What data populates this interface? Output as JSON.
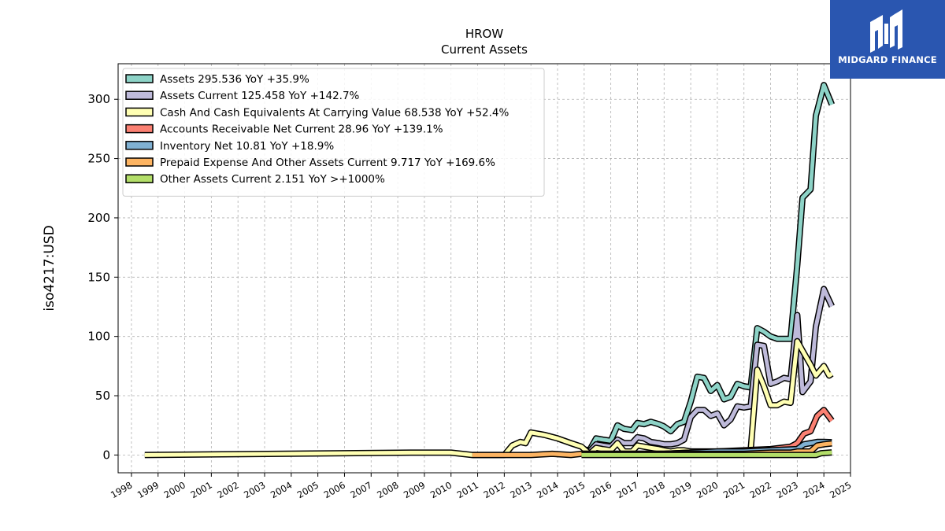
{
  "brand": {
    "name": "MIDGARD FINANCE",
    "color": "#2a56b0"
  },
  "chart_data": {
    "type": "line",
    "title": "HROW",
    "subtitle": "Current  Assets",
    "ylabel": "iso4217:USD",
    "xlabel": "",
    "xlim": [
      1997.5,
      2025.0
    ],
    "ylim": [
      -15,
      330
    ],
    "y_ticks": [
      0,
      50,
      100,
      150,
      200,
      250,
      300
    ],
    "x_ticks": [
      1998,
      1999,
      2000,
      2001,
      2002,
      2003,
      2004,
      2005,
      2006,
      2007,
      2008,
      2009,
      2010,
      2011,
      2012,
      2013,
      2014,
      2015,
      2016,
      2017,
      2018,
      2019,
      2020,
      2021,
      2022,
      2023,
      2024,
      2025
    ],
    "grid": true,
    "legend_position": "top-left",
    "series": [
      {
        "name": "Assets  295.536 YoY +35.9%",
        "color": "#8dd3c7",
        "points": [
          [
            2014.9,
            5
          ],
          [
            2015.2,
            4
          ],
          [
            2015.45,
            14
          ],
          [
            2015.7,
            13
          ],
          [
            2016.0,
            12
          ],
          [
            2016.25,
            25
          ],
          [
            2016.5,
            22
          ],
          [
            2016.8,
            21
          ],
          [
            2017.0,
            27
          ],
          [
            2017.25,
            26
          ],
          [
            2017.5,
            28
          ],
          [
            2017.8,
            26
          ],
          [
            2018.0,
            24
          ],
          [
            2018.25,
            20
          ],
          [
            2018.5,
            26
          ],
          [
            2018.75,
            28
          ],
          [
            2019.0,
            45
          ],
          [
            2019.25,
            66
          ],
          [
            2019.5,
            65
          ],
          [
            2019.75,
            54
          ],
          [
            2020.0,
            59
          ],
          [
            2020.25,
            47
          ],
          [
            2020.5,
            49
          ],
          [
            2020.75,
            60
          ],
          [
            2021.0,
            58
          ],
          [
            2021.25,
            57
          ],
          [
            2021.5,
            107
          ],
          [
            2021.75,
            104
          ],
          [
            2022.0,
            100
          ],
          [
            2022.25,
            98
          ],
          [
            2022.5,
            98
          ],
          [
            2022.75,
            98
          ],
          [
            2023.0,
            160
          ],
          [
            2023.2,
            217
          ],
          [
            2023.5,
            224
          ],
          [
            2023.7,
            286
          ],
          [
            2024.0,
            312
          ],
          [
            2024.3,
            295.536
          ]
        ]
      },
      {
        "name": "Assets Current  125.458 YoY +142.7%",
        "color": "#bebada",
        "points": [
          [
            2014.9,
            4
          ],
          [
            2015.2,
            3
          ],
          [
            2015.45,
            9
          ],
          [
            2015.7,
            8
          ],
          [
            2016.0,
            7
          ],
          [
            2016.25,
            13
          ],
          [
            2016.5,
            10
          ],
          [
            2016.8,
            10
          ],
          [
            2017.0,
            15
          ],
          [
            2017.25,
            14
          ],
          [
            2017.5,
            11
          ],
          [
            2017.8,
            10
          ],
          [
            2018.0,
            9
          ],
          [
            2018.25,
            9
          ],
          [
            2018.5,
            10
          ],
          [
            2018.75,
            13
          ],
          [
            2019.0,
            32
          ],
          [
            2019.25,
            38
          ],
          [
            2019.5,
            38
          ],
          [
            2019.75,
            33
          ],
          [
            2020.0,
            35
          ],
          [
            2020.25,
            25
          ],
          [
            2020.5,
            30
          ],
          [
            2020.75,
            41
          ],
          [
            2021.0,
            40
          ],
          [
            2021.25,
            41
          ],
          [
            2021.5,
            93
          ],
          [
            2021.75,
            92
          ],
          [
            2022.0,
            60
          ],
          [
            2022.25,
            62
          ],
          [
            2022.5,
            65
          ],
          [
            2022.75,
            64
          ],
          [
            2023.0,
            118
          ],
          [
            2023.2,
            53
          ],
          [
            2023.5,
            62
          ],
          [
            2023.7,
            108
          ],
          [
            2024.0,
            140
          ],
          [
            2024.3,
            125.458
          ]
        ]
      },
      {
        "name": "Cash And Cash Equivalents At Carrying Value  68.538 YoY +52.4%",
        "color": "#ffffb3",
        "points": [
          [
            1998.5,
            0
          ],
          [
            2008.5,
            2
          ],
          [
            2010.0,
            2
          ],
          [
            2010.8,
            0
          ],
          [
            2011.2,
            0
          ],
          [
            2012.0,
            0
          ],
          [
            2012.3,
            8
          ],
          [
            2012.6,
            11
          ],
          [
            2012.8,
            10
          ],
          [
            2013.0,
            19
          ],
          [
            2013.5,
            17
          ],
          [
            2014.0,
            14
          ],
          [
            2014.5,
            10
          ],
          [
            2014.9,
            7
          ],
          [
            2015.2,
            1
          ],
          [
            2015.45,
            6
          ],
          [
            2015.7,
            5
          ],
          [
            2016.0,
            4
          ],
          [
            2016.25,
            10
          ],
          [
            2016.5,
            3
          ],
          [
            2016.8,
            3
          ],
          [
            2017.0,
            8
          ],
          [
            2017.25,
            7
          ],
          [
            2017.5,
            6
          ],
          [
            2017.8,
            5
          ],
          [
            2018.0,
            4
          ],
          [
            2018.25,
            3
          ],
          [
            2018.5,
            4
          ],
          [
            2018.75,
            4
          ],
          [
            2019.0,
            3
          ],
          [
            2019.25,
            3
          ],
          [
            2019.5,
            3
          ],
          [
            2019.75,
            3
          ],
          [
            2020.0,
            3
          ],
          [
            2020.25,
            3
          ],
          [
            2020.5,
            3
          ],
          [
            2020.75,
            3
          ],
          [
            2021.0,
            3
          ],
          [
            2021.25,
            4
          ],
          [
            2021.5,
            72
          ],
          [
            2021.75,
            58
          ],
          [
            2022.0,
            42
          ],
          [
            2022.25,
            42
          ],
          [
            2022.5,
            45
          ],
          [
            2022.75,
            44
          ],
          [
            2023.0,
            96
          ],
          [
            2023.2,
            88
          ],
          [
            2023.5,
            76
          ],
          [
            2023.7,
            67
          ],
          [
            2024.0,
            75
          ],
          [
            2024.2,
            67
          ],
          [
            2024.3,
            68.538
          ]
        ]
      },
      {
        "name": "Accounts Receivable Net Current  28.96 YoY +139.1%",
        "color": "#fb8072",
        "points": [
          [
            2014.9,
            1
          ],
          [
            2016.0,
            1
          ],
          [
            2017.0,
            1
          ],
          [
            2018.0,
            1
          ],
          [
            2019.0,
            2
          ],
          [
            2020.0,
            3
          ],
          [
            2021.0,
            4
          ],
          [
            2022.0,
            5
          ],
          [
            2022.75,
            7
          ],
          [
            2023.0,
            10
          ],
          [
            2023.25,
            18
          ],
          [
            2023.5,
            20
          ],
          [
            2023.75,
            33
          ],
          [
            2024.0,
            38
          ],
          [
            2024.3,
            28.96
          ]
        ]
      },
      {
        "name": "Inventory Net  10.81 YoY +18.9%",
        "color": "#80b1d3",
        "points": [
          [
            2014.9,
            1
          ],
          [
            2016.0,
            1
          ],
          [
            2017.0,
            1
          ],
          [
            2018.0,
            1
          ],
          [
            2019.0,
            2
          ],
          [
            2020.0,
            3
          ],
          [
            2021.0,
            3
          ],
          [
            2022.0,
            4
          ],
          [
            2023.0,
            5
          ],
          [
            2023.25,
            9
          ],
          [
            2023.5,
            10
          ],
          [
            2023.75,
            11
          ],
          [
            2024.0,
            11
          ],
          [
            2024.3,
            10.81
          ]
        ]
      },
      {
        "name": "Prepaid Expense And Other Assets Current  9.717 YoY +169.6%",
        "color": "#fdb462",
        "points": [
          [
            2010.8,
            0
          ],
          [
            2012.0,
            0
          ],
          [
            2013.0,
            0
          ],
          [
            2013.8,
            1
          ],
          [
            2014.5,
            0
          ],
          [
            2014.9,
            1
          ],
          [
            2016.0,
            1
          ],
          [
            2017.0,
            1
          ],
          [
            2018.0,
            1
          ],
          [
            2019.0,
            1
          ],
          [
            2020.0,
            1
          ],
          [
            2021.0,
            1
          ],
          [
            2022.0,
            2
          ],
          [
            2022.75,
            2
          ],
          [
            2023.0,
            3
          ],
          [
            2023.5,
            3
          ],
          [
            2023.75,
            8
          ],
          [
            2024.0,
            9
          ],
          [
            2024.3,
            9.717
          ]
        ]
      },
      {
        "name": "Other Assets Current  2.151 YoY >+1000%",
        "color": "#b3de69",
        "points": [
          [
            2014.9,
            0
          ],
          [
            2016.0,
            0
          ],
          [
            2017.0,
            0
          ],
          [
            2018.0,
            0
          ],
          [
            2019.0,
            0
          ],
          [
            2020.0,
            0
          ],
          [
            2021.0,
            0
          ],
          [
            2022.0,
            0
          ],
          [
            2023.0,
            0
          ],
          [
            2023.7,
            0
          ],
          [
            2023.9,
            1.5
          ],
          [
            2024.3,
            2.151
          ]
        ]
      }
    ]
  }
}
